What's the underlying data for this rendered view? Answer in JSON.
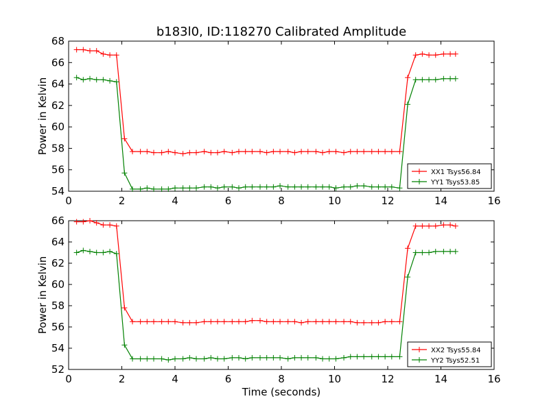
{
  "title": "b183l0, ID:118270 Calibrated Amplitude",
  "colors": {
    "XX": "#ff0000",
    "YY": "#008000"
  },
  "chart_data": [
    {
      "type": "line",
      "xlabel": "",
      "ylabel": "Power in Kelvin",
      "xlim": [
        0,
        16
      ],
      "ylim": [
        54,
        68
      ],
      "xticks": [
        "0",
        "2",
        "4",
        "6",
        "8",
        "10",
        "12",
        "14",
        "16"
      ],
      "yticks": [
        "54",
        "56",
        "58",
        "60",
        "62",
        "64",
        "66",
        "68"
      ],
      "grid": false,
      "legend_position": "bottom-right",
      "x": [
        0.3,
        0.55,
        0.8,
        1.05,
        1.3,
        1.55,
        1.8,
        2.1,
        2.4,
        2.7,
        2.95,
        3.2,
        3.5,
        3.75,
        4.0,
        4.3,
        4.55,
        4.8,
        5.1,
        5.35,
        5.6,
        5.85,
        6.15,
        6.4,
        6.65,
        6.9,
        7.2,
        7.45,
        7.7,
        7.95,
        8.25,
        8.5,
        8.75,
        9.0,
        9.3,
        9.55,
        9.8,
        10.05,
        10.35,
        10.6,
        10.85,
        11.1,
        11.4,
        11.65,
        11.9,
        12.15,
        12.45,
        12.75,
        13.05,
        13.3,
        13.55,
        13.8,
        14.1,
        14.35,
        14.55
      ],
      "series": [
        {
          "name": "XX1 Tsys56.84",
          "values": [
            67.2,
            67.2,
            67.1,
            67.1,
            66.8,
            66.7,
            66.7,
            58.9,
            57.7,
            57.7,
            57.7,
            57.6,
            57.6,
            57.7,
            57.6,
            57.5,
            57.6,
            57.6,
            57.7,
            57.6,
            57.6,
            57.7,
            57.6,
            57.7,
            57.7,
            57.7,
            57.7,
            57.6,
            57.7,
            57.7,
            57.7,
            57.6,
            57.7,
            57.7,
            57.7,
            57.6,
            57.7,
            57.7,
            57.6,
            57.7,
            57.7,
            57.7,
            57.7,
            57.7,
            57.7,
            57.7,
            57.7,
            64.6,
            66.7,
            66.8,
            66.7,
            66.7,
            66.8,
            66.8,
            66.8
          ]
        },
        {
          "name": "YY1 Tsys53.85",
          "values": [
            64.6,
            64.4,
            64.5,
            64.4,
            64.4,
            64.3,
            64.2,
            55.7,
            54.2,
            54.2,
            54.3,
            54.2,
            54.2,
            54.2,
            54.3,
            54.3,
            54.3,
            54.3,
            54.4,
            54.4,
            54.3,
            54.4,
            54.4,
            54.3,
            54.4,
            54.4,
            54.4,
            54.4,
            54.4,
            54.5,
            54.4,
            54.4,
            54.4,
            54.4,
            54.4,
            54.4,
            54.4,
            54.3,
            54.4,
            54.4,
            54.5,
            54.5,
            54.4,
            54.4,
            54.4,
            54.4,
            54.3,
            62.1,
            64.4,
            64.4,
            64.4,
            64.4,
            64.5,
            64.5,
            64.5
          ]
        }
      ]
    },
    {
      "type": "line",
      "xlabel": "Time (seconds)",
      "ylabel": "Power in Kelvin",
      "xlim": [
        0,
        16
      ],
      "ylim": [
        52,
        66
      ],
      "xticks": [
        "0",
        "2",
        "4",
        "6",
        "8",
        "10",
        "12",
        "14",
        "16"
      ],
      "yticks": [
        "52",
        "54",
        "56",
        "58",
        "60",
        "62",
        "64",
        "66"
      ],
      "grid": false,
      "legend_position": "bottom-right",
      "x": [
        0.3,
        0.55,
        0.8,
        1.05,
        1.3,
        1.55,
        1.8,
        2.1,
        2.4,
        2.7,
        2.95,
        3.2,
        3.5,
        3.75,
        4.0,
        4.3,
        4.55,
        4.8,
        5.1,
        5.35,
        5.6,
        5.85,
        6.15,
        6.4,
        6.65,
        6.9,
        7.2,
        7.45,
        7.7,
        7.95,
        8.25,
        8.5,
        8.75,
        9.0,
        9.3,
        9.55,
        9.8,
        10.05,
        10.35,
        10.6,
        10.85,
        11.1,
        11.4,
        11.65,
        11.9,
        12.15,
        12.45,
        12.75,
        13.05,
        13.3,
        13.55,
        13.8,
        14.1,
        14.35,
        14.55
      ],
      "series": [
        {
          "name": "XX2 Tsys55.84",
          "values": [
            65.9,
            65.9,
            66.0,
            65.8,
            65.6,
            65.6,
            65.5,
            57.8,
            56.5,
            56.5,
            56.5,
            56.5,
            56.5,
            56.5,
            56.5,
            56.4,
            56.4,
            56.4,
            56.5,
            56.5,
            56.5,
            56.5,
            56.5,
            56.5,
            56.5,
            56.6,
            56.6,
            56.5,
            56.5,
            56.5,
            56.5,
            56.5,
            56.4,
            56.5,
            56.5,
            56.5,
            56.5,
            56.5,
            56.5,
            56.5,
            56.4,
            56.4,
            56.4,
            56.4,
            56.5,
            56.5,
            56.5,
            63.4,
            65.5,
            65.5,
            65.5,
            65.5,
            65.6,
            65.6,
            65.5
          ]
        },
        {
          "name": "YY2 Tsys52.51",
          "values": [
            63.0,
            63.2,
            63.1,
            63.0,
            63.0,
            63.1,
            62.9,
            54.3,
            53.0,
            53.0,
            53.0,
            53.0,
            53.0,
            52.9,
            53.0,
            53.0,
            53.1,
            53.0,
            53.0,
            53.1,
            53.0,
            53.0,
            53.1,
            53.1,
            53.0,
            53.1,
            53.1,
            53.1,
            53.1,
            53.1,
            53.0,
            53.1,
            53.1,
            53.1,
            53.1,
            53.0,
            53.0,
            53.0,
            53.1,
            53.2,
            53.2,
            53.2,
            53.2,
            53.2,
            53.2,
            53.2,
            53.2,
            60.7,
            63.0,
            63.0,
            63.0,
            63.1,
            63.1,
            63.1,
            63.1
          ]
        }
      ]
    }
  ]
}
